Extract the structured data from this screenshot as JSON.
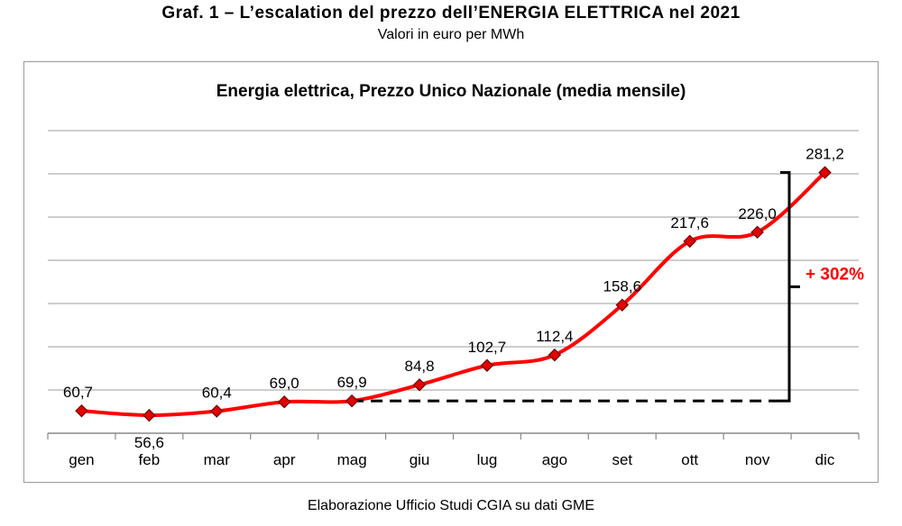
{
  "figure": {
    "title": "Graf. 1 – L’escalation del prezzo dell’ENERGIA ELETTRICA nel 2021",
    "subtitle": "Valori in euro per MWh",
    "source": "Elaborazione Ufficio Studi CGIA su dati GME"
  },
  "chart_data": {
    "type": "line",
    "title": "Energia elettrica, Prezzo Unico Nazionale (media mensile)",
    "categories": [
      "gen",
      "feb",
      "mar",
      "apr",
      "mag",
      "giu",
      "lug",
      "ago",
      "set",
      "ott",
      "nov",
      "dic"
    ],
    "values": [
      60.7,
      56.6,
      60.4,
      69.0,
      69.9,
      84.8,
      102.7,
      112.4,
      158.6,
      217.6,
      226.0,
      281.2
    ],
    "value_labels": [
      "60,7",
      "56,6",
      "60,4",
      "69,0",
      "69,9",
      "84,8",
      "102,7",
      "112,4",
      "158,6",
      "217,6",
      "226,0",
      "281,2"
    ],
    "ylim": [
      40,
      320
    ],
    "grid": true,
    "series_color": "#ff0000",
    "marker_color": "#e00000",
    "annotation": {
      "text": "+ 302%",
      "from_category": "mag",
      "to_category": "dic",
      "color": "#ff0000"
    }
  }
}
